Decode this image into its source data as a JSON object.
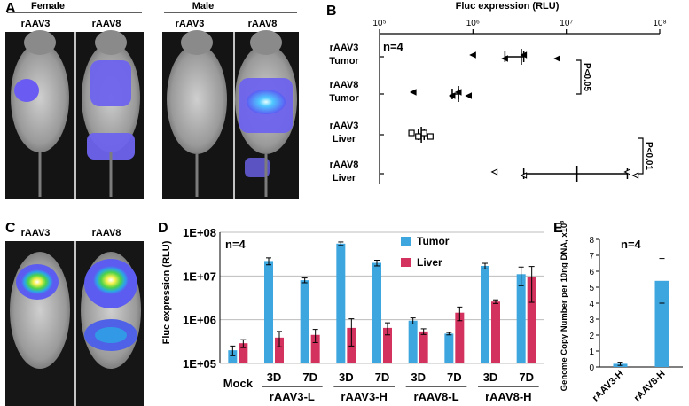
{
  "panels": {
    "A": {
      "letter": "A",
      "groups": [
        {
          "title": "Female",
          "subs": [
            "rAAV3",
            "rAAV8"
          ]
        },
        {
          "title": "Male",
          "subs": [
            "rAAV3",
            "rAAV8"
          ]
        }
      ]
    },
    "B": {
      "letter": "B",
      "xlabel": "Fluc expression (RLU)",
      "ticks": [
        "10⁵",
        "10⁶",
        "10⁷",
        "10⁸"
      ],
      "n_label": "n=4",
      "rows": [
        {
          "line1": "rAAV3",
          "line2": "Tumor"
        },
        {
          "line1": "rAAV8",
          "line2": "Tumor"
        },
        {
          "line1": "rAAV3",
          "line2": "Liver"
        },
        {
          "line1": "rAAV8",
          "line2": "Liver"
        }
      ],
      "pvals": [
        "P<0.05",
        "P<0.01"
      ]
    },
    "C": {
      "letter": "C",
      "subs": [
        "rAAV3",
        "rAAV8"
      ]
    },
    "D": {
      "letter": "D",
      "n_label": "n=4",
      "mock_label": "Mock",
      "day_labels": [
        "3D",
        "7D",
        "3D",
        "7D",
        "3D",
        "7D",
        "3D",
        "7D"
      ]
    },
    "E": {
      "letter": "E",
      "n_label": "n=4"
    }
  },
  "chart_data": [
    {
      "type": "scatter",
      "panel": "B",
      "xlabel": "Fluc expression (RLU)",
      "xscale": "log",
      "xlim": [
        100000,
        100000000
      ],
      "categories": [
        "rAAV3 Tumor",
        "rAAV8 Tumor",
        "rAAV3 Liver",
        "rAAV8 Liver"
      ],
      "series": [
        {
          "values": [
            [
              1000000,
              2200000,
              3500000,
              8000000
            ],
            [
              230000,
              600000,
              700000,
              900000
            ],
            [
              220000,
              260000,
              300000,
              350000
            ],
            [
              1700000,
              3500000,
              45000000,
              55000000
            ]
          ]
        }
      ],
      "means": [
        3300000,
        700000,
        280000,
        13000000
      ],
      "annotations": [
        "P<0.05",
        "P<0.01"
      ]
    },
    {
      "type": "bar",
      "panel": "D",
      "ylabel": "Fluc expression (RLU)",
      "yscale": "log",
      "ylim": [
        100000,
        100000000
      ],
      "yticks": [
        "1E+05",
        "1E+06",
        "1E+07",
        "1E+08"
      ],
      "categories": [
        "Mock",
        "rAAV3-L 3D",
        "rAAV3-L 7D",
        "rAAV3-H 3D",
        "rAAV3-H 7D",
        "rAAV8-L 3D",
        "rAAV8-L 7D",
        "rAAV8-H 3D",
        "rAAV8-H 7D"
      ],
      "group_labels": [
        "rAAV3-L",
        "rAAV3-H",
        "rAAV8-L",
        "rAAV8-H"
      ],
      "series": [
        {
          "name": "Tumor",
          "color": "#3ea6df",
          "values": [
            200000,
            22000000,
            8000000,
            55000000,
            20000000,
            950000,
            480000,
            17000000,
            11000000
          ],
          "errors": [
            50000,
            4000000,
            1000000,
            5000000,
            3000000,
            150000,
            30000,
            2500000,
            5000000
          ]
        },
        {
          "name": "Liver",
          "color": "#d4325e",
          "values": [
            290000,
            390000,
            450000,
            650000,
            650000,
            540000,
            1450000,
            2600000,
            9500000
          ],
          "errors": [
            60000,
            150000,
            150000,
            400000,
            200000,
            80000,
            500000,
            250000,
            7000000
          ]
        }
      ],
      "legend": "top-right"
    },
    {
      "type": "bar",
      "panel": "E",
      "ylabel": "Genome Copy Number per 10ng DNA, x10³",
      "ylim": [
        0,
        8
      ],
      "yticks": [
        "0",
        "1",
        "2",
        "3",
        "4",
        "5",
        "6",
        "7",
        "8"
      ],
      "categories": [
        "rAAV3-H",
        "rAAV8-H"
      ],
      "values": [
        0.2,
        5.4
      ],
      "errors": [
        0.1,
        1.4
      ],
      "color": "#3ea6df"
    }
  ]
}
